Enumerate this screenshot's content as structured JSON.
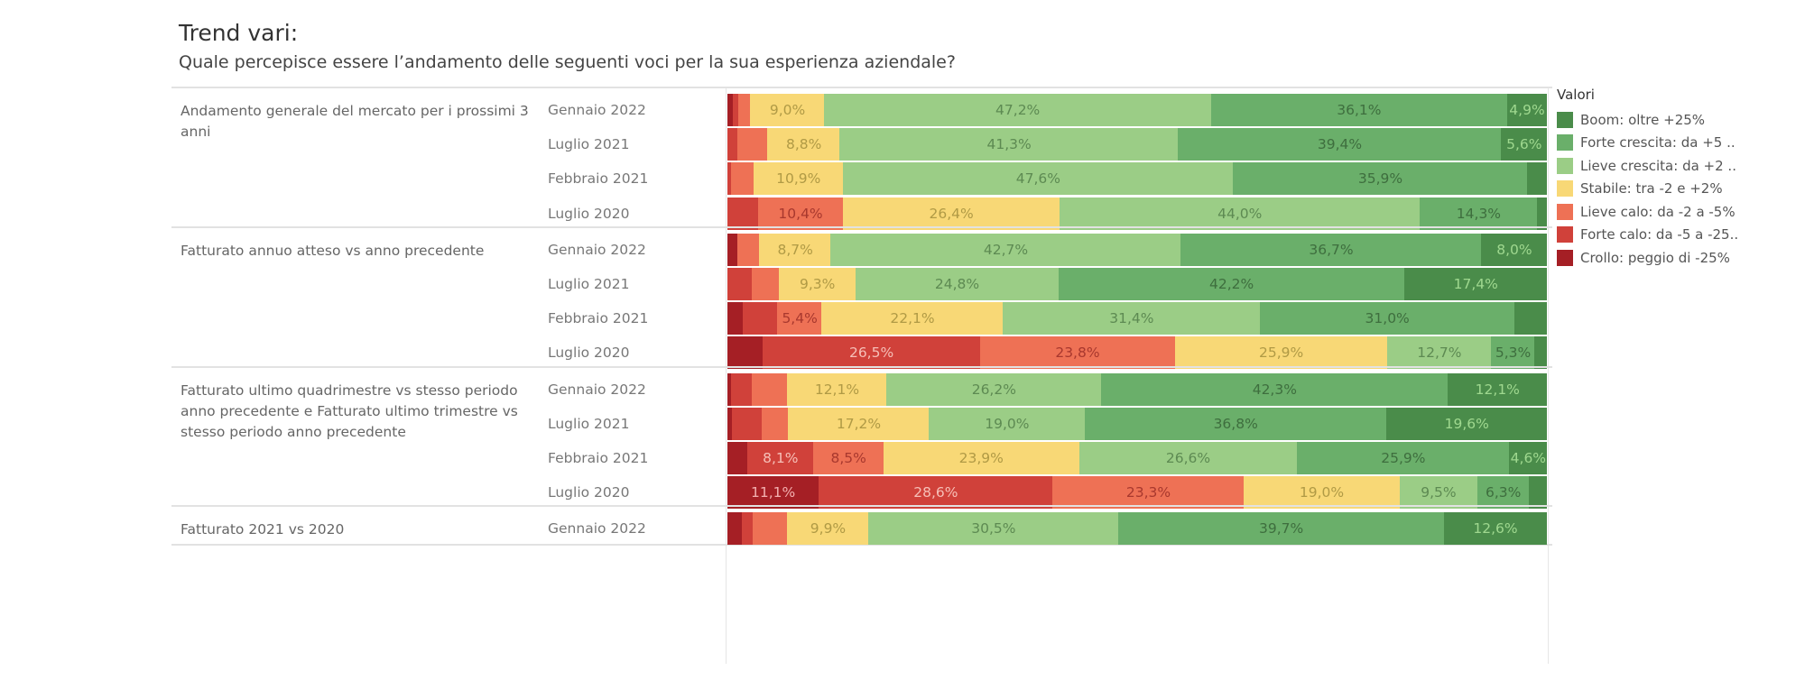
{
  "header": {
    "title": "Trend vari:",
    "subtitle": "Quale percepisce essere l’andamento delle seguenti voci per la sua esperienza aziendale?"
  },
  "legend": {
    "title": "Valori",
    "items": [
      {
        "label": "Boom: oltre +25%",
        "color": "#4a8c4a"
      },
      {
        "label": "Forte crescita: da +5 ..",
        "color": "#6aaf6a"
      },
      {
        "label": "Lieve crescita: da +2 ..",
        "color": "#9bcd86"
      },
      {
        "label": "Stabile: tra -2 e +2%",
        "color": "#f8d876"
      },
      {
        "label": "Lieve calo: da -2 a -5%",
        "color": "#ee7155"
      },
      {
        "label": "Forte calo: da -5 a -25..",
        "color": "#d0413a"
      },
      {
        "label": "Crollo: peggio di -25%",
        "color": "#a51f25"
      }
    ]
  },
  "chart_data": {
    "type": "bar",
    "orientation": "horizontal",
    "stacked": true,
    "normalized": true,
    "title": "Trend vari:",
    "subtitle": "Quale percepisce essere l’andamento delle seguenti voci per la sua esperienza aziendale?",
    "xlim": [
      0,
      100
    ],
    "unit": "%",
    "legend_position": "right",
    "series_order": [
      "Crollo: peggio di -25%",
      "Forte calo: da -5 a -25..",
      "Lieve calo: da -2 a -5%",
      "Stabile: tra -2 e +2%",
      "Lieve crescita: da +2 ..",
      "Forte crescita: da +5 ..",
      "Boom: oltre +25%"
    ],
    "series_colors": [
      "#a51f25",
      "#d0413a",
      "#ee7155",
      "#f8d876",
      "#9bcd86",
      "#6aaf6a",
      "#4a8c4a"
    ],
    "label_colors": [
      "#f3b0b0",
      "#f6c0b8",
      "#a8382e",
      "#b09a45",
      "#5d8a52",
      "#3e6e3e",
      "#9fd88f"
    ],
    "groups": [
      {
        "label": "Andamento generale del mercato per i prossimi 3 anni",
        "rows": [
          {
            "period": "Gennaio 2022",
            "values": [
              0.7,
              0.6,
              1.5,
              9.0,
              47.2,
              36.1,
              4.9
            ],
            "labels": [
              "",
              "",
              "",
              "9,0%",
              "47,2%",
              "36,1%",
              "4,9%"
            ]
          },
          {
            "period": "Luglio 2021",
            "values": [
              0,
              1.2,
              3.7,
              8.8,
              41.3,
              39.4,
              5.6
            ],
            "labels": [
              "",
              "",
              "",
              "8,8%",
              "41,3%",
              "39,4%",
              "5,6%"
            ]
          },
          {
            "period": "Febbraio 2021",
            "values": [
              0,
              0.4,
              2.8,
              10.9,
              47.6,
              35.9,
              2.4
            ],
            "labels": [
              "",
              "",
              "",
              "10,9%",
              "47,6%",
              "35,9%",
              ""
            ]
          },
          {
            "period": "Luglio 2020",
            "values": [
              0,
              3.7,
              10.4,
              26.4,
              44.0,
              14.3,
              1.2
            ],
            "labels": [
              "",
              "",
              "10,4%",
              "26,4%",
              "44,0%",
              "14,3%",
              ""
            ]
          }
        ]
      },
      {
        "label": "Fatturato annuo atteso vs anno precedente",
        "rows": [
          {
            "period": "Gennaio 2022",
            "values": [
              1.2,
              0,
              2.7,
              8.7,
              42.7,
              36.7,
              8.0
            ],
            "labels": [
              "",
              "",
              "",
              "8,7%",
              "42,7%",
              "36,7%",
              "8,0%"
            ]
          },
          {
            "period": "Luglio 2021",
            "values": [
              0,
              3.0,
              3.3,
              9.3,
              24.8,
              42.2,
              17.4
            ],
            "labels": [
              "",
              "",
              "",
              "9,3%",
              "24,8%",
              "42,2%",
              "17,4%"
            ]
          },
          {
            "period": "Febbraio 2021",
            "values": [
              1.9,
              4.2,
              5.4,
              22.1,
              31.4,
              31.0,
              4.0
            ],
            "labels": [
              "",
              "",
              "5,4%",
              "22,1%",
              "31,4%",
              "31,0%",
              ""
            ]
          },
          {
            "period": "Luglio 2020",
            "values": [
              4.3,
              26.5,
              23.8,
              25.9,
              12.7,
              5.3,
              1.5
            ],
            "labels": [
              "",
              "26,5%",
              "23,8%",
              "25,9%",
              "12,7%",
              "5,3%",
              ""
            ]
          }
        ]
      },
      {
        "label": "Fatturato ultimo quadrimestre vs stesso periodo anno precedente e Fatturato ultimo trimestre vs stesso periodo anno precedente",
        "rows": [
          {
            "period": "Gennaio 2022",
            "values": [
              0.4,
              2.6,
              4.3,
              12.1,
              26.2,
              42.3,
              12.1
            ],
            "labels": [
              "",
              "",
              "",
              "12,1%",
              "26,2%",
              "42,3%",
              "12,1%"
            ]
          },
          {
            "period": "Luglio 2021",
            "values": [
              0.6,
              3.6,
              3.2,
              17.2,
              19.0,
              36.8,
              19.6
            ],
            "labels": [
              "",
              "",
              "",
              "17,2%",
              "19,0%",
              "36,8%",
              "19,6%"
            ]
          },
          {
            "period": "Febbraio 2021",
            "values": [
              2.4,
              8.1,
              8.5,
              23.9,
              26.6,
              25.9,
              4.6
            ],
            "labels": [
              "",
              "8,1%",
              "8,5%",
              "23,9%",
              "26,6%",
              "25,9%",
              "4,6%"
            ]
          },
          {
            "period": "Luglio 2020",
            "values": [
              11.1,
              28.6,
              23.3,
              19.0,
              9.5,
              6.3,
              2.2
            ],
            "labels": [
              "11,1%",
              "28,6%",
              "23,3%",
              "19,0%",
              "9,5%",
              "6,3%",
              ""
            ]
          }
        ]
      },
      {
        "label": "Fatturato 2021 vs 2020",
        "rows": [
          {
            "period": "Gennaio 2022",
            "values": [
              1.8,
              1.3,
              4.2,
              9.9,
              30.5,
              39.7,
              12.6
            ],
            "labels": [
              "",
              "",
              "",
              "9,9%",
              "30,5%",
              "39,7%",
              "12,6%"
            ]
          }
        ]
      }
    ]
  }
}
